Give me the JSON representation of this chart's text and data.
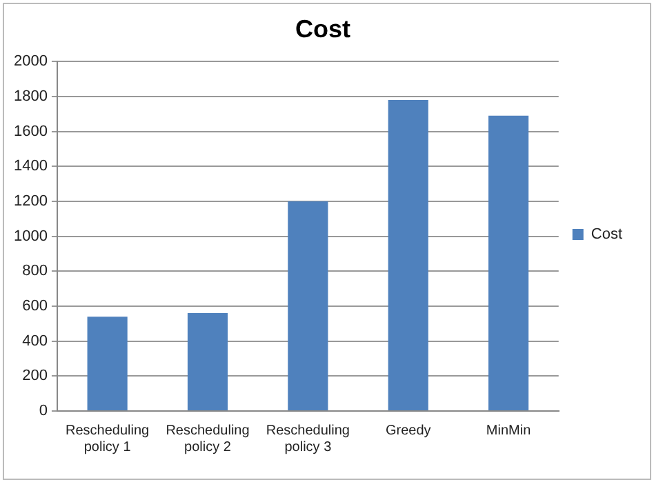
{
  "chart_data": {
    "type": "bar",
    "title": "Cost",
    "categories": [
      "Rescheduling policy 1",
      "Rescheduling policy 2",
      "Rescheduling policy 3",
      "Greedy",
      "MinMin"
    ],
    "series": [
      {
        "name": "Cost",
        "color": "#4f81bd",
        "values": [
          540,
          560,
          1200,
          1780,
          1690
        ]
      }
    ],
    "ylim": [
      0,
      2000
    ],
    "yticks": [
      0,
      200,
      400,
      600,
      800,
      1000,
      1200,
      1400,
      1600,
      1800,
      2000
    ],
    "grid": "y",
    "legend": "right"
  }
}
